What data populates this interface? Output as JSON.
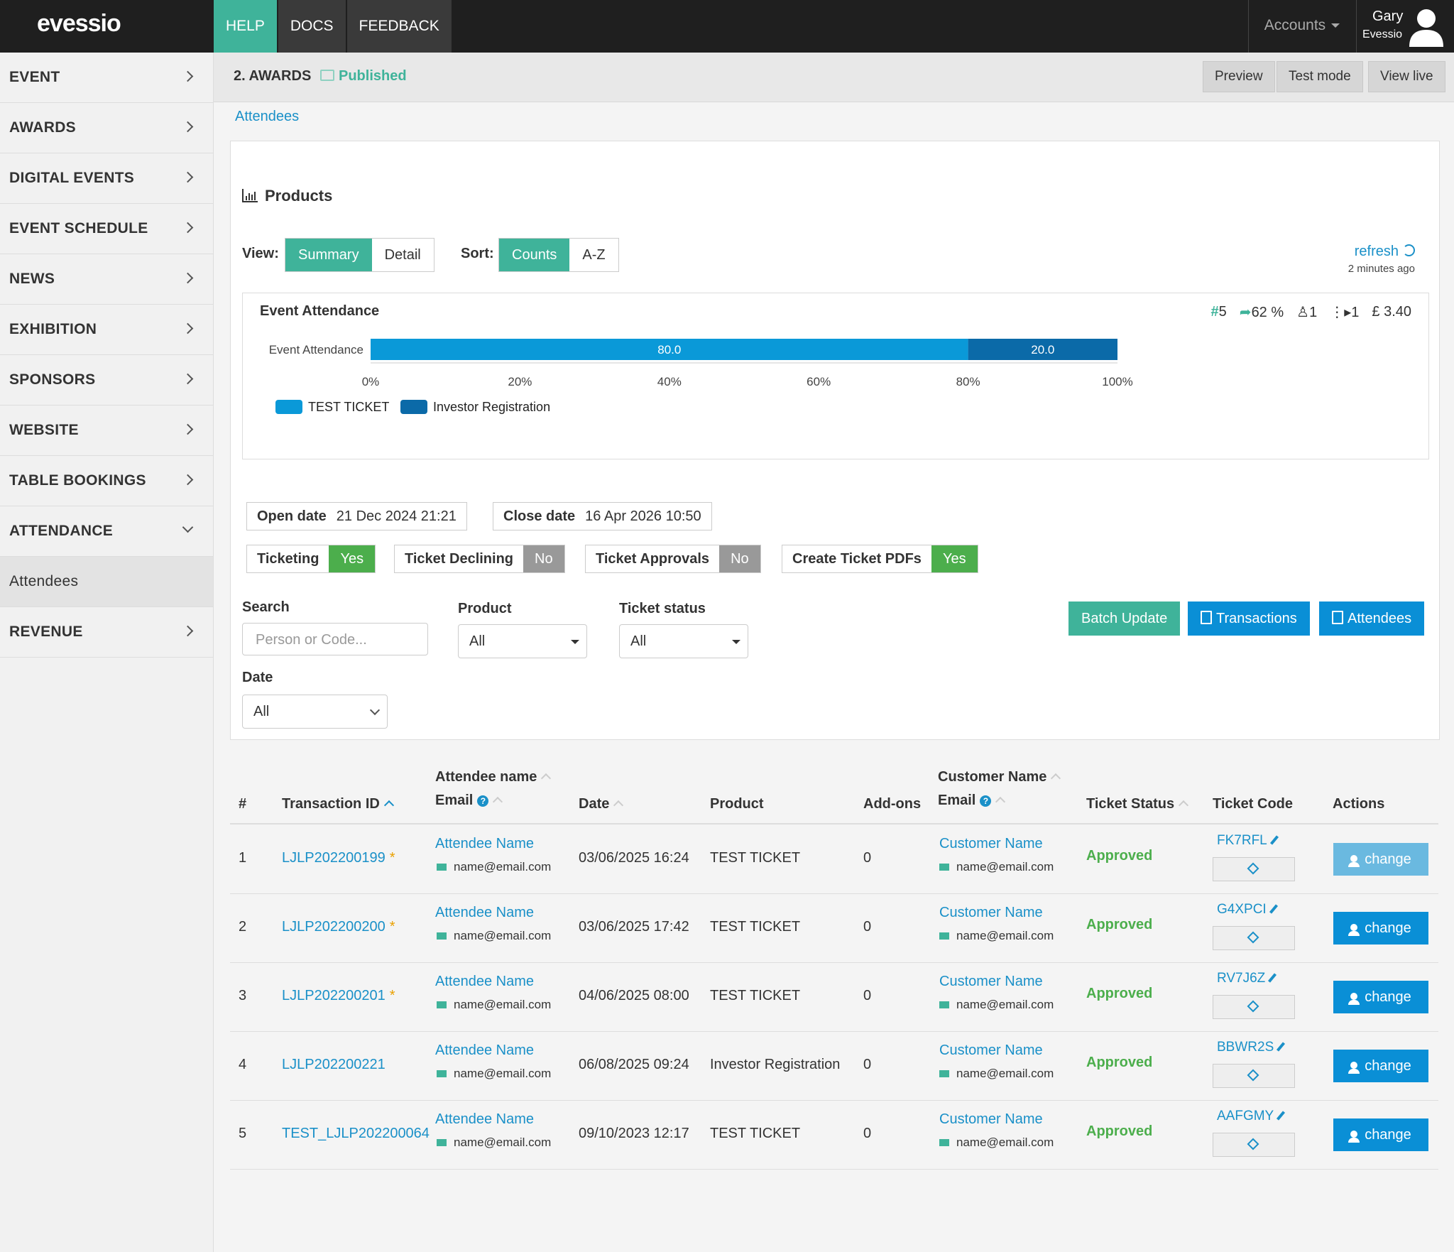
{
  "app": {
    "logo": "evessio"
  },
  "topnav": {
    "items": [
      "HELP",
      "DOCS",
      "FEEDBACK"
    ],
    "accounts": "Accounts",
    "user_name": "Gary",
    "user_org": "Evessio"
  },
  "sidebar": {
    "items": [
      "EVENT",
      "AWARDS",
      "DIGITAL EVENTS",
      "EVENT SCHEDULE",
      "NEWS",
      "EXHIBITION",
      "SPONSORS",
      "WEBSITE",
      "TABLE BOOKINGS",
      "ATTENDANCE"
    ],
    "sub_item": "Attendees",
    "last_item": "REVENUE"
  },
  "header": {
    "title": "2. AWARDS",
    "status": "Published",
    "buttons": [
      "Preview",
      "Test mode",
      "View live"
    ]
  },
  "breadcrumb": "Attendees",
  "products": {
    "title": "Products",
    "view_label": "View:",
    "view_options": [
      "Summary",
      "Detail"
    ],
    "sort_label": "Sort:",
    "sort_options": [
      "Counts",
      "A-Z"
    ],
    "refresh": "refresh",
    "refresh_time": "2 minutes ago"
  },
  "chart_data": {
    "type": "bar",
    "orientation": "horizontal-stacked",
    "title": "Event Attendance",
    "categories": [
      "Event Attendance"
    ],
    "series": [
      {
        "name": "TEST TICKET",
        "values": [
          80.0
        ],
        "color": "#0a99d8"
      },
      {
        "name": "Investor Registration",
        "values": [
          20.0
        ],
        "color": "#0b6aa8"
      }
    ],
    "x_ticks": [
      "0%",
      "20%",
      "40%",
      "60%",
      "80%",
      "100%"
    ],
    "xlim": [
      0,
      100
    ],
    "legend": "bottom-left",
    "stats": {
      "count": "5",
      "percent": "62 %",
      "people": "1",
      "groups": "1",
      "amount": "£ 3.40"
    }
  },
  "dates": {
    "open_label": "Open date",
    "open_value": "21 Dec 2024 21:21",
    "close_label": "Close date",
    "close_value": "16 Apr 2026 10:50"
  },
  "flags": [
    {
      "label": "Ticketing",
      "value": "Yes"
    },
    {
      "label": "Ticket Declining",
      "value": "No"
    },
    {
      "label": "Ticket Approvals",
      "value": "No"
    },
    {
      "label": "Create Ticket PDFs",
      "value": "Yes"
    }
  ],
  "filters": {
    "search_label": "Search",
    "search_placeholder": "Person or Code...",
    "product_label": "Product",
    "product_value": "All",
    "status_label": "Ticket status",
    "status_value": "All",
    "date_label": "Date",
    "date_value": "All"
  },
  "actions": [
    "Batch Update",
    "Transactions",
    "Attendees"
  ],
  "table": {
    "headers": {
      "num": "#",
      "txn": "Transaction ID",
      "attendee": "Attendee name",
      "email": "Email",
      "date": "Date",
      "product": "Product",
      "addons": "Add-ons",
      "customer": "Customer Name",
      "cemail": "Email",
      "status": "Ticket Status",
      "code": "Ticket Code",
      "actions": "Actions"
    },
    "rows": [
      {
        "num": "1",
        "txn": "LJLP202200199",
        "star": "*",
        "attendee": "Attendee Name",
        "email": "name@email.com",
        "date": "03/06/2025 16:24",
        "product": "TEST TICKET",
        "addons": "0",
        "customer": "Customer Name",
        "cemail": "name@email.com",
        "status": "Approved",
        "code": "FK7RFL",
        "action": "change"
      },
      {
        "num": "2",
        "txn": "LJLP202200200",
        "star": "*",
        "attendee": "Attendee Name",
        "email": "name@email.com",
        "date": "03/06/2025 17:42",
        "product": "TEST TICKET",
        "addons": "0",
        "customer": "Customer Name",
        "cemail": "name@email.com",
        "status": "Approved",
        "code": "G4XPCI",
        "action": "change"
      },
      {
        "num": "3",
        "txn": "LJLP202200201",
        "star": "*",
        "attendee": "Attendee Name",
        "email": "name@email.com",
        "date": "04/06/2025 08:00",
        "product": "TEST TICKET",
        "addons": "0",
        "customer": "Customer Name",
        "cemail": "name@email.com",
        "status": "Approved",
        "code": "RV7J6Z",
        "action": "change"
      },
      {
        "num": "4",
        "txn": "LJLP202200221",
        "star": "",
        "attendee": "Attendee Name",
        "email": "name@email.com",
        "date": "06/08/2025 09:24",
        "product": "Investor Registration",
        "addons": "0",
        "customer": "Customer Name",
        "cemail": "name@email.com",
        "status": "Approved",
        "code": "BBWR2S",
        "action": "change"
      },
      {
        "num": "5",
        "txn": "TEST_LJLP202200064",
        "star": "",
        "attendee": "Attendee Name",
        "email": "name@email.com",
        "date": "09/10/2023 12:17",
        "product": "TEST TICKET",
        "addons": "0",
        "customer": "Customer Name",
        "cemail": "name@email.com",
        "status": "Approved",
        "code": "AAFGMY",
        "action": "change"
      }
    ]
  }
}
